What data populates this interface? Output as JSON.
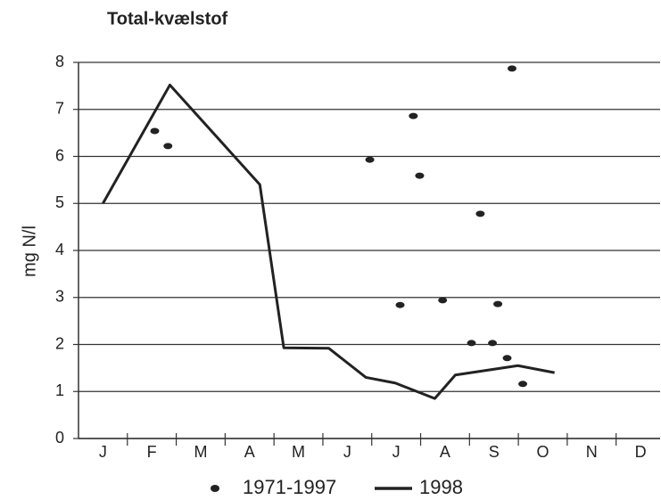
{
  "chart_data": {
    "type": "line",
    "title": "Total-kvælstof",
    "ylabel": "mg N/l",
    "xlim": [
      0,
      11.9
    ],
    "xticks": [
      {
        "value": 0.5,
        "label": "J"
      },
      {
        "value": 1.5,
        "label": "F"
      },
      {
        "value": 2.5,
        "label": "M"
      },
      {
        "value": 3.5,
        "label": "A"
      },
      {
        "value": 4.5,
        "label": "M"
      },
      {
        "value": 5.5,
        "label": "J"
      },
      {
        "value": 6.5,
        "label": "J"
      },
      {
        "value": 7.5,
        "label": "A"
      },
      {
        "value": 8.5,
        "label": "S"
      },
      {
        "value": 9.5,
        "label": "O"
      },
      {
        "value": 10.5,
        "label": "N"
      },
      {
        "value": 11.5,
        "label": "D"
      }
    ],
    "ylim": [
      0,
      8
    ],
    "yticks": [
      0,
      1,
      2,
      3,
      4,
      5,
      6,
      7,
      8
    ],
    "grid": true,
    "series": [
      {
        "name": "1971-1997",
        "type": "scatter",
        "color": "#222222",
        "x": [
          1.56,
          1.83,
          5.96,
          6.85,
          6.98,
          6.58,
          7.45,
          8.22,
          8.04,
          8.47,
          8.58,
          8.87,
          8.77,
          9.09
        ],
        "values": [
          6.54,
          6.22,
          5.93,
          6.86,
          5.59,
          2.84,
          2.94,
          4.78,
          2.03,
          2.03,
          2.86,
          7.87,
          1.71,
          1.16
        ]
      },
      {
        "name": "1998",
        "type": "line",
        "color": "#222222",
        "x": [
          0.5,
          1.87,
          3.71,
          4.2,
          5.12,
          5.88,
          6.48,
          7.29,
          7.71,
          8.99,
          9.74
        ],
        "values": [
          5.0,
          7.52,
          5.4,
          1.93,
          1.92,
          1.3,
          1.18,
          0.85,
          1.35,
          1.55,
          1.4
        ]
      }
    ]
  }
}
